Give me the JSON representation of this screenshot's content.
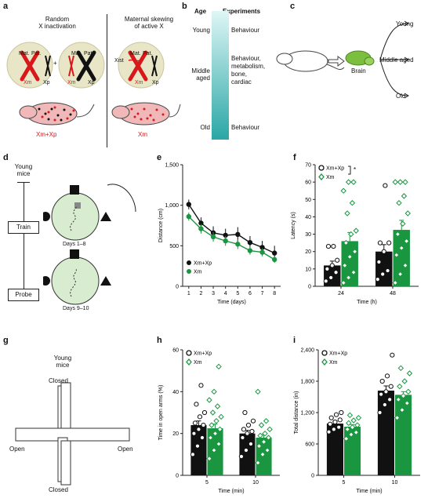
{
  "panel_letters": [
    "a",
    "b",
    "c",
    "d",
    "e",
    "f",
    "g",
    "h",
    "i"
  ],
  "panel_a": {
    "left_title": "Random\nX inactivation",
    "right_title": "Maternal skewing\nof active X",
    "mat": "Mat.",
    "pat": "Pat.",
    "xm": "Xm",
    "xp": "Xp",
    "plus": "+",
    "xist": "Xist",
    "left_genotype": "Xm+Xp",
    "right_genotype": "Xm",
    "colors": {
      "red": "#d7191c",
      "cell": "#e8e6c6",
      "black": "#111111"
    }
  },
  "panel_b": {
    "col_age": "Age",
    "col_exp": "Experiments",
    "rows": [
      {
        "age": "Young",
        "exp": "Behaviour"
      },
      {
        "age": "Middle\naged",
        "exp": "Behaviour,\nmetabolism,\nbone,\ncardiac"
      },
      {
        "age": "Old",
        "exp": "Behaviour"
      }
    ],
    "gradient": [
      "#dff6f6",
      "#2aa6a6"
    ]
  },
  "panel_c": {
    "brain": "Brain",
    "outcomes": [
      "Young",
      "Middle aged",
      "Old"
    ],
    "brain_color": "#7cbf3e"
  },
  "panel_d": {
    "top_label": "Young\nmice",
    "train": "Train",
    "probe": "Probe",
    "days_train": "Days 1–8",
    "days_probe": "Days 9–10",
    "arena_color": "#d8ecd0"
  },
  "panel_g": {
    "top_label": "Young\nmice",
    "closed": "Closed",
    "open": "Open"
  },
  "legend": {
    "xmxp": "Xm+Xp",
    "xm": "Xm"
  },
  "colors": {
    "black_series": "#111111",
    "green_series": "#1a9641",
    "green_dark": "#0f8a3a"
  },
  "chart_data": [
    {
      "panel": "e",
      "type": "line",
      "xlabel": "Time (days)",
      "ylabel": "Distance (cm)",
      "x": [
        1,
        2,
        3,
        4,
        5,
        6,
        7,
        8
      ],
      "xlim": [
        0.5,
        8.5
      ],
      "ylim": [
        0,
        1500
      ],
      "yticks": [
        0,
        500,
        1000,
        1500
      ],
      "ytick_labels": [
        "0",
        "500",
        "1,000",
        "1,500"
      ],
      "series": [
        {
          "name": "Xm+Xp",
          "values": [
            1010,
            780,
            660,
            630,
            640,
            540,
            480,
            410
          ],
          "err": [
            60,
            70,
            80,
            80,
            90,
            80,
            80,
            90
          ]
        },
        {
          "name": "Xm",
          "values": [
            860,
            710,
            610,
            560,
            520,
            440,
            420,
            330
          ],
          "err": [
            50,
            60,
            60,
            60,
            60,
            50,
            50,
            40
          ]
        }
      ]
    },
    {
      "panel": "f",
      "type": "bar",
      "xlabel": "Time (h)",
      "ylabel": "Latency (s)",
      "categories": [
        "24",
        "48"
      ],
      "ylim": [
        0,
        70
      ],
      "yticks": [
        0,
        10,
        20,
        30,
        40,
        50,
        60,
        70
      ],
      "significance": "*",
      "series": [
        {
          "name": "Xm+Xp",
          "values": [
            12,
            20
          ],
          "err": [
            2.5,
            4
          ],
          "points": [
            [
              3,
              5,
              8,
              10,
              12,
              15,
              23,
              23
            ],
            [
              4,
              7,
              9,
              14,
              20,
              25,
              25,
              58
            ]
          ]
        },
        {
          "name": "Xm",
          "values": [
            26,
            32.5
          ],
          "err": [
            5,
            5.5
          ],
          "points": [
            [
              2,
              5,
              8,
              12,
              17,
              20,
              25,
              30,
              32,
              42,
              48,
              55,
              60,
              60
            ],
            [
              2,
              7,
              12,
              18,
              22,
              26,
              30,
              36,
              42,
              48,
              52,
              60,
              60,
              60
            ]
          ]
        }
      ]
    },
    {
      "panel": "h",
      "type": "bar",
      "xlabel": "Time (min)",
      "ylabel": "Time in open arms (%)",
      "categories": [
        "5",
        "10"
      ],
      "ylim": [
        0,
        60
      ],
      "yticks": [
        0,
        20,
        40,
        60
      ],
      "series": [
        {
          "name": "Xm+Xp",
          "values": [
            24,
            20
          ],
          "err": [
            2,
            1.5
          ],
          "points": [
            [
              10,
              14,
              18,
              20,
              22,
              24,
              25,
              28,
              30,
              34,
              43
            ],
            [
              9,
              12,
              15,
              18,
              20,
              21,
              22,
              24,
              26,
              30
            ]
          ]
        },
        {
          "name": "Xm",
          "values": [
            22.5,
            18
          ],
          "err": [
            2,
            1.5
          ],
          "points": [
            [
              8,
              12,
              15,
              18,
              20,
              22,
              24,
              26,
              28,
              30,
              33,
              36,
              40,
              52
            ],
            [
              6,
              10,
              12,
              14,
              16,
              18,
              19,
              20,
              22,
              24,
              26,
              40
            ]
          ]
        }
      ]
    },
    {
      "panel": "i",
      "type": "bar",
      "xlabel": "Time (min)",
      "ylabel": "Total distance (in)",
      "categories": [
        "5",
        "10"
      ],
      "ylim": [
        0,
        2400
      ],
      "yticks": [
        0,
        600,
        1200,
        1800,
        2400
      ],
      "ytick_labels": [
        "0",
        "600",
        "1,200",
        "1,800",
        "2,400"
      ],
      "series": [
        {
          "name": "Xm+Xp",
          "values": [
            990,
            1620
          ],
          "err": [
            50,
            90
          ],
          "points": [
            [
              830,
              880,
              920,
              980,
              1020,
              1060,
              1100,
              1160,
              1200
            ],
            [
              1200,
              1350,
              1450,
              1550,
              1600,
              1700,
              1800,
              1900,
              2300
            ]
          ]
        },
        {
          "name": "Xm",
          "values": [
            930,
            1540
          ],
          "err": [
            40,
            60
          ],
          "points": [
            [
              700,
              780,
              820,
              880,
              920,
              960,
              1000,
              1050,
              1100,
              1150
            ],
            [
              1100,
              1250,
              1380,
              1450,
              1520,
              1600,
              1700,
              1800,
              1950,
              2050
            ]
          ]
        }
      ]
    }
  ]
}
